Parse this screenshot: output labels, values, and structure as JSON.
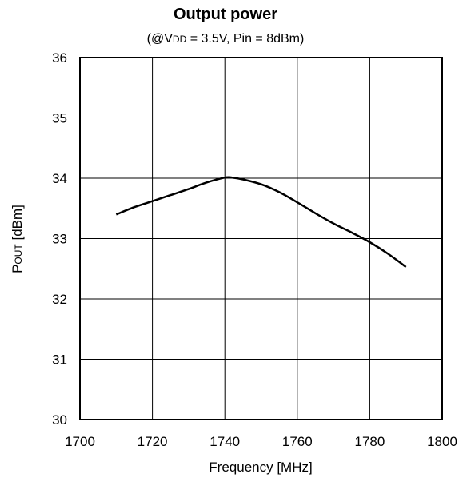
{
  "chart_data": {
    "type": "line",
    "title": "Output power",
    "subtitle": {
      "prefix": "(@V",
      "vdd_sub": "DD",
      "suffix": " = 3.5V, Pin = 8dBm)"
    },
    "xlabel": "Frequency [MHz]",
    "ylabel": {
      "main": "P",
      "sub": "OUT",
      "suffix": " [dBm]"
    },
    "xlim": [
      1700,
      1800
    ],
    "ylim": [
      30,
      36
    ],
    "xticks": [
      1700,
      1720,
      1740,
      1760,
      1780,
      1800
    ],
    "yticks": [
      30,
      31,
      32,
      33,
      34,
      35,
      36
    ],
    "grid": true,
    "series": [
      {
        "x": [
          1710,
          1715,
          1720,
          1725,
          1730,
          1735,
          1740,
          1742,
          1745,
          1750,
          1755,
          1760,
          1765,
          1770,
          1775,
          1780,
          1785,
          1790
        ],
        "y": [
          33.4,
          33.52,
          33.62,
          33.72,
          33.82,
          33.93,
          34.01,
          34.01,
          33.98,
          33.9,
          33.77,
          33.6,
          33.42,
          33.25,
          33.1,
          32.94,
          32.75,
          32.53
        ]
      }
    ]
  }
}
